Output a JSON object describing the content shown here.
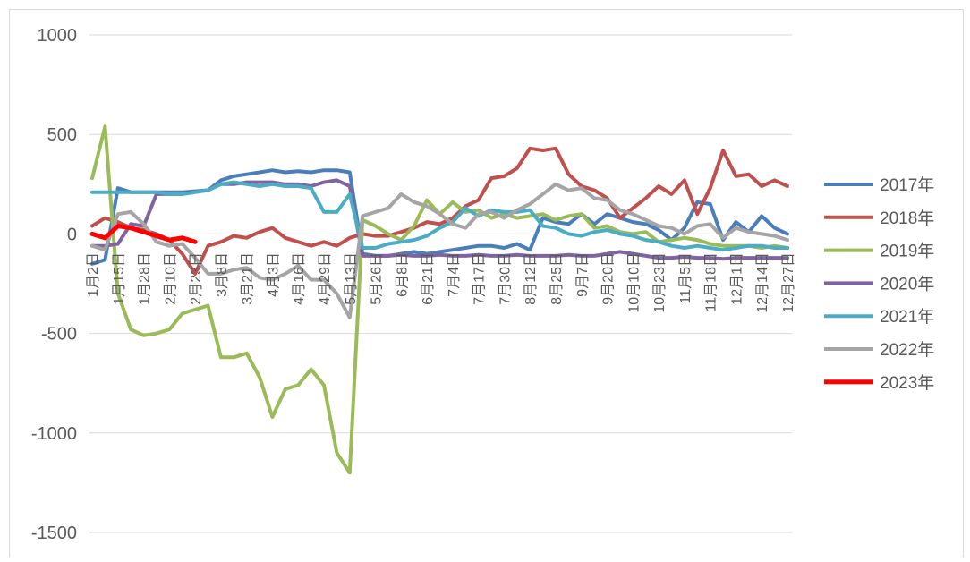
{
  "chart_data": {
    "type": "line",
    "categories": [
      "1月2日",
      null,
      "1月15日",
      null,
      "1月28日",
      null,
      "2月10日",
      null,
      "2月23日",
      null,
      "3月8日",
      null,
      "3月21日",
      null,
      "4月3日",
      null,
      "4月16日",
      null,
      "4月29日",
      null,
      "5月13日",
      null,
      "5月26日",
      null,
      "6月8日",
      null,
      "6月21日",
      null,
      "7月4日",
      null,
      "7月17日",
      null,
      "7月30日",
      null,
      "8月12日",
      null,
      "8月25日",
      null,
      "9月7日",
      null,
      "9月20日",
      null,
      "10月10日",
      null,
      "10月23日",
      null,
      "11月5日",
      null,
      "11月18日",
      null,
      "12月1日",
      null,
      "12月14日",
      null,
      "12月27日"
    ],
    "ylim": [
      -1500,
      1000
    ],
    "yticks": [
      1000,
      500,
      0,
      -500,
      -1000,
      -1500
    ],
    "grid": true,
    "legend": "right",
    "series": [
      {
        "name": "2017年",
        "color": "#4a7ebb",
        "values": [
          -150,
          -130,
          230,
          210,
          210,
          210,
          210,
          210,
          215,
          220,
          270,
          290,
          300,
          310,
          320,
          310,
          315,
          310,
          320,
          320,
          310,
          -100,
          -110,
          -110,
          -100,
          -90,
          -100,
          -90,
          -80,
          -70,
          -60,
          -60,
          -70,
          -50,
          -80,
          80,
          60,
          50,
          100,
          50,
          100,
          80,
          60,
          50,
          20,
          -30,
          30,
          160,
          150,
          -30,
          60,
          10,
          90,
          30,
          0
        ]
      },
      {
        "name": "2018年",
        "color": "#c0504d",
        "values": [
          40,
          80,
          60,
          30,
          20,
          0,
          -30,
          -100,
          -200,
          -60,
          -40,
          -10,
          -20,
          10,
          30,
          -20,
          -40,
          -60,
          -40,
          -60,
          -20,
          0,
          -10,
          -10,
          10,
          30,
          60,
          50,
          80,
          140,
          170,
          280,
          290,
          330,
          430,
          420,
          430,
          300,
          240,
          220,
          180,
          80,
          130,
          180,
          240,
          200,
          270,
          100,
          230,
          420,
          290,
          300,
          240,
          270,
          240
        ]
      },
      {
        "name": "2019年",
        "color": "#9bbb59",
        "values": [
          280,
          540,
          -300,
          -480,
          -510,
          -500,
          -480,
          -400,
          -380,
          -360,
          -620,
          -620,
          -600,
          -720,
          -920,
          -780,
          -760,
          -680,
          -760,
          -1100,
          -1200,
          70,
          40,
          0,
          -30,
          40,
          170,
          100,
          160,
          110,
          120,
          80,
          100,
          80,
          90,
          100,
          70,
          90,
          100,
          30,
          40,
          10,
          0,
          10,
          -40,
          -30,
          -20,
          -30,
          -50,
          -60,
          -60,
          -60,
          -70,
          -60,
          -70
        ]
      },
      {
        "name": "2020年",
        "color": "#8064a2",
        "values": [
          -60,
          -60,
          -50,
          50,
          40,
          200,
          200,
          200,
          210,
          220,
          250,
          250,
          260,
          260,
          260,
          250,
          250,
          240,
          260,
          270,
          240,
          -110,
          -110,
          -110,
          -105,
          -110,
          -110,
          -105,
          -110,
          -110,
          -105,
          -110,
          -110,
          -105,
          -110,
          -110,
          -110,
          -105,
          -110,
          -110,
          -100,
          -90,
          -100,
          -110,
          -120,
          -120,
          -115,
          -120,
          -120,
          -125,
          -120,
          -120,
          -120,
          -120,
          -120
        ]
      },
      {
        "name": "2021年",
        "color": "#4bacc6",
        "values": [
          210,
          210,
          210,
          210,
          210,
          210,
          200,
          200,
          210,
          220,
          250,
          260,
          250,
          240,
          250,
          240,
          240,
          230,
          110,
          110,
          200,
          -70,
          -70,
          -50,
          -40,
          -30,
          -10,
          30,
          60,
          130,
          90,
          120,
          110,
          110,
          120,
          40,
          30,
          0,
          -10,
          10,
          20,
          0,
          -10,
          -30,
          -40,
          -60,
          -70,
          -60,
          -70,
          -80,
          -70,
          -60,
          -60,
          -70,
          -70
        ]
      },
      {
        "name": "2022年",
        "color": "#a5a5a5",
        "values": [
          -60,
          -80,
          100,
          110,
          50,
          -40,
          -60,
          -50,
          -120,
          -200,
          -200,
          -180,
          -170,
          -220,
          -230,
          -200,
          -160,
          -230,
          -230,
          -300,
          -420,
          90,
          110,
          130,
          200,
          160,
          140,
          100,
          50,
          30,
          100,
          110,
          80,
          120,
          150,
          200,
          250,
          220,
          230,
          180,
          170,
          120,
          100,
          70,
          40,
          30,
          0,
          40,
          50,
          -20,
          30,
          10,
          0,
          -10,
          -30
        ]
      },
      {
        "name": "2023年",
        "color": "#ff0000",
        "values": [
          0,
          -20,
          40,
          30,
          10,
          -10,
          -30,
          -20,
          -40,
          null,
          null,
          null,
          null,
          null,
          null,
          null,
          null,
          null,
          null,
          null,
          null,
          null,
          null,
          null,
          null,
          null,
          null,
          null,
          null,
          null,
          null,
          null,
          null,
          null,
          null,
          null,
          null,
          null,
          null,
          null,
          null,
          null,
          null,
          null,
          null,
          null,
          null,
          null,
          null,
          null,
          null,
          null,
          null,
          null,
          null
        ]
      }
    ]
  }
}
